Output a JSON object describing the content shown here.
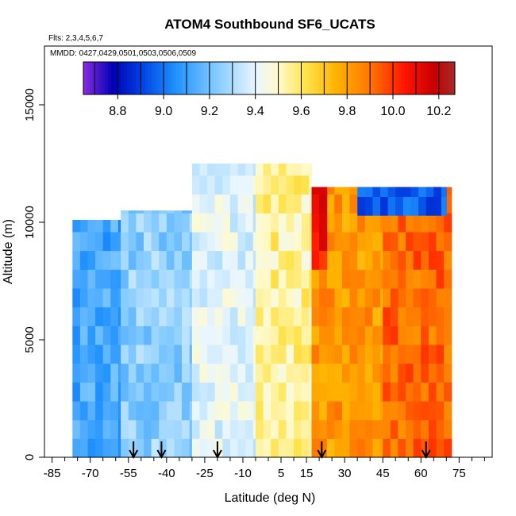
{
  "chart_data": {
    "type": "heatmap",
    "title": "ATOM4 Southbound SF6_UCATS",
    "flights_label": "Flts: 2,3,4,5,6,7",
    "dates_label": "MMDD: 0427,0429,0501,0503,0506,0509",
    "xlabel": "Latitude (deg N)",
    "ylabel": "Altitude (m)",
    "xlim": [
      -88,
      88
    ],
    "ylim": [
      0,
      17500
    ],
    "x_ticks": [
      -85,
      -70,
      -55,
      -40,
      -25,
      -10,
      5,
      15,
      30,
      45,
      60,
      75
    ],
    "x_tick_labels": [
      "-85",
      "-70",
      "-55",
      "-40",
      "-25",
      "-10",
      "5",
      "15",
      "30",
      "45",
      "60",
      "75"
    ],
    "x_minor_ticks": [
      -80,
      -75,
      -65,
      -60,
      -50,
      -45,
      -35,
      -30,
      -20,
      -15,
      -5,
      0,
      10,
      20,
      25,
      35,
      40,
      50,
      55,
      65,
      70,
      80,
      85
    ],
    "y_ticks": [
      0,
      5000,
      10000,
      15000
    ],
    "y_tick_labels": [
      "0",
      "5000",
      "10000",
      "15000"
    ],
    "colorbar": {
      "range": [
        8.65,
        10.27
      ],
      "ticks": [
        8.8,
        9.0,
        9.2,
        9.4,
        9.6,
        9.8,
        10.0,
        10.2
      ],
      "tick_labels": [
        "8.8",
        "9.0",
        "9.2",
        "9.4",
        "9.6",
        "9.8",
        "10.0",
        "10.2"
      ],
      "stops": [
        {
          "v": 8.65,
          "c": "#8a2be2"
        },
        {
          "v": 8.78,
          "c": "#0000b4"
        },
        {
          "v": 8.9,
          "c": "#0040e0"
        },
        {
          "v": 9.05,
          "c": "#1e90ff"
        },
        {
          "v": 9.22,
          "c": "#7ec8ff"
        },
        {
          "v": 9.4,
          "c": "#e8f6ff"
        },
        {
          "v": 9.5,
          "c": "#fffacd"
        },
        {
          "v": 9.62,
          "c": "#ffe34d"
        },
        {
          "v": 9.75,
          "c": "#ffb300"
        },
        {
          "v": 9.9,
          "c": "#ff7800"
        },
        {
          "v": 10.05,
          "c": "#ff1500"
        },
        {
          "v": 10.18,
          "c": "#c80000"
        },
        {
          "v": 10.27,
          "c": "#a52a2a"
        }
      ]
    },
    "arrows_at_latitude": [
      -53,
      -42,
      -20,
      21,
      62
    ],
    "field_regions": [
      {
        "lat": [
          -77,
          -58
        ],
        "alt": [
          0,
          10100
        ],
        "value": 9.12
      },
      {
        "lat": [
          -58,
          -30
        ],
        "alt": [
          0,
          10500
        ],
        "value": 9.25
      },
      {
        "lat": [
          -30,
          -5
        ],
        "alt": [
          0,
          12500
        ],
        "value": 9.4
      },
      {
        "lat": [
          -5,
          17
        ],
        "alt": [
          0,
          12500
        ],
        "value": 9.55
      },
      {
        "lat": [
          17,
          45
        ],
        "alt": [
          0,
          11500
        ],
        "value": 9.82
      },
      {
        "lat": [
          45,
          72
        ],
        "alt": [
          0,
          11500
        ],
        "value": 9.92
      },
      {
        "lat": [
          35,
          70
        ],
        "alt": [
          10300,
          11500
        ],
        "value": 8.95
      },
      {
        "lat": [
          17,
          23
        ],
        "alt": [
          8000,
          11500
        ],
        "value": 10.08
      }
    ]
  }
}
